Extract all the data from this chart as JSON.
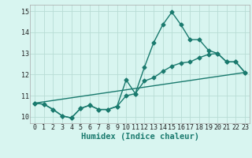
{
  "line1_x": [
    0,
    1,
    2,
    3,
    4,
    5,
    6,
    7,
    8,
    9,
    10,
    11,
    12,
    13,
    14,
    15,
    16,
    17,
    18,
    19,
    20,
    21,
    22,
    23
  ],
  "line1_y": [
    10.65,
    10.6,
    10.35,
    10.05,
    9.95,
    10.4,
    10.55,
    10.35,
    10.35,
    10.5,
    11.75,
    11.1,
    12.35,
    13.5,
    14.35,
    14.95,
    14.35,
    13.65,
    13.65,
    13.15,
    13.0,
    12.6,
    12.6,
    12.1
  ],
  "line2_x": [
    0,
    1,
    2,
    3,
    4,
    5,
    6,
    7,
    8,
    9,
    10,
    11,
    12,
    13,
    14,
    15,
    16,
    17,
    18,
    19,
    20,
    21,
    22,
    23
  ],
  "line2_y": [
    10.65,
    10.6,
    10.35,
    10.05,
    9.95,
    10.4,
    10.55,
    10.35,
    10.35,
    10.5,
    11.0,
    11.1,
    11.7,
    11.85,
    12.15,
    12.4,
    12.55,
    12.6,
    12.8,
    12.95,
    13.0,
    12.6,
    12.6,
    12.1
  ],
  "line3_x": [
    0,
    23
  ],
  "line3_y": [
    10.65,
    12.1
  ],
  "line_color": "#1a7a6e",
  "bg_color": "#d8f5f0",
  "grid_color": "#b8dcd5",
  "xlabel": "Humidex (Indice chaleur)",
  "xlim": [
    -0.5,
    23.5
  ],
  "ylim": [
    9.7,
    15.3
  ],
  "xticks": [
    0,
    1,
    2,
    3,
    4,
    5,
    6,
    7,
    8,
    9,
    10,
    11,
    12,
    13,
    14,
    15,
    16,
    17,
    18,
    19,
    20,
    21,
    22,
    23
  ],
  "yticks": [
    10,
    11,
    12,
    13,
    14,
    15
  ],
  "xlabel_fontsize": 7.5,
  "tick_fontsize": 6,
  "marker_size": 2.5,
  "line_width": 1.0
}
